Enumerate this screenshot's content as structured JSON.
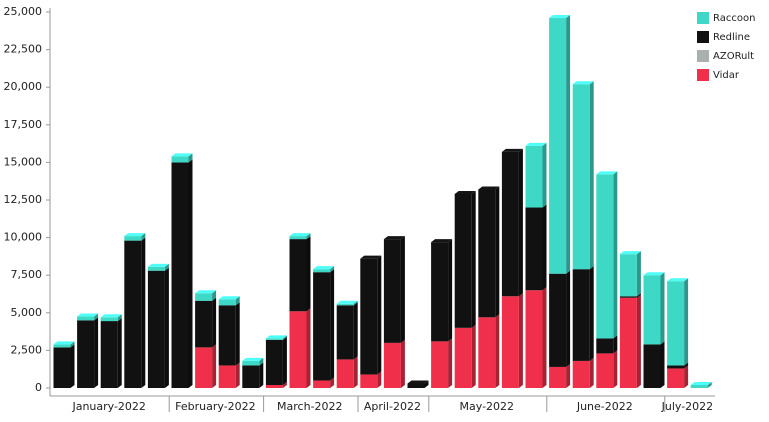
{
  "chart_data": {
    "type": "stacked-bar",
    "categories": [
      "January-2022",
      "January-2022",
      "January-2022",
      "January-2022",
      "January-2022",
      "February-2022",
      "February-2022",
      "February-2022",
      "February-2022",
      "March-2022",
      "March-2022",
      "March-2022",
      "March-2022",
      "April-2022",
      "April-2022",
      "April-2022",
      "May-2022",
      "May-2022",
      "May-2022",
      "May-2022",
      "May-2022",
      "June-2022",
      "June-2022",
      "June-2022",
      "June-2022",
      "June-2022",
      "July-2022",
      "July-2022"
    ],
    "series": [
      {
        "name": "Raccoon",
        "color": "#3ed9c6",
        "values": [
          200,
          250,
          250,
          300,
          250,
          400,
          500,
          400,
          300,
          100,
          200,
          200,
          100,
          0,
          0,
          0,
          0,
          0,
          0,
          0,
          4100,
          17000,
          12300,
          10900,
          2800,
          4600,
          5600,
          200
        ]
      },
      {
        "name": "Redline",
        "color": "#111111",
        "values": [
          2700,
          4500,
          4450,
          9800,
          7800,
          15000,
          3100,
          4000,
          1500,
          3000,
          4800,
          7200,
          3600,
          7700,
          6900,
          300,
          6600,
          8900,
          8500,
          9600,
          5500,
          6200,
          6100,
          1000,
          100,
          2900,
          200,
          0
        ]
      },
      {
        "name": "AZORult",
        "color": "#a9b0b0",
        "values": [
          0,
          0,
          0,
          0,
          0,
          0,
          0,
          0,
          0,
          0,
          0,
          0,
          0,
          0,
          0,
          0,
          0,
          0,
          0,
          0,
          0,
          0,
          0,
          0,
          0,
          0,
          0,
          0
        ]
      },
      {
        "name": "Vidar",
        "color": "#f0304a",
        "values": [
          0,
          0,
          0,
          0,
          0,
          0,
          2700,
          1500,
          0,
          200,
          5100,
          500,
          1900,
          900,
          3000,
          0,
          3100,
          4000,
          4700,
          6100,
          6500,
          1400,
          1800,
          2300,
          6000,
          0,
          1300,
          0
        ]
      }
    ],
    "ylim": [
      0,
      25000
    ],
    "yticks": [
      0,
      {
        "value": 2500,
        "label": "2,500"
      },
      {
        "value": 5000,
        "label": "5,000"
      },
      {
        "value": 7500,
        "label": "7,500"
      },
      {
        "value": 10000,
        "label": "10,000"
      },
      {
        "value": 12500,
        "label": "12,500"
      },
      {
        "value": 15000,
        "label": "15,000"
      },
      {
        "value": 17500,
        "label": "17,500"
      },
      {
        "value": 20000,
        "label": "20,000"
      },
      {
        "value": 22500,
        "label": "22,500"
      },
      {
        "value": 25000,
        "label": "25,000"
      }
    ],
    "legend": "top-right",
    "grid": false
  }
}
